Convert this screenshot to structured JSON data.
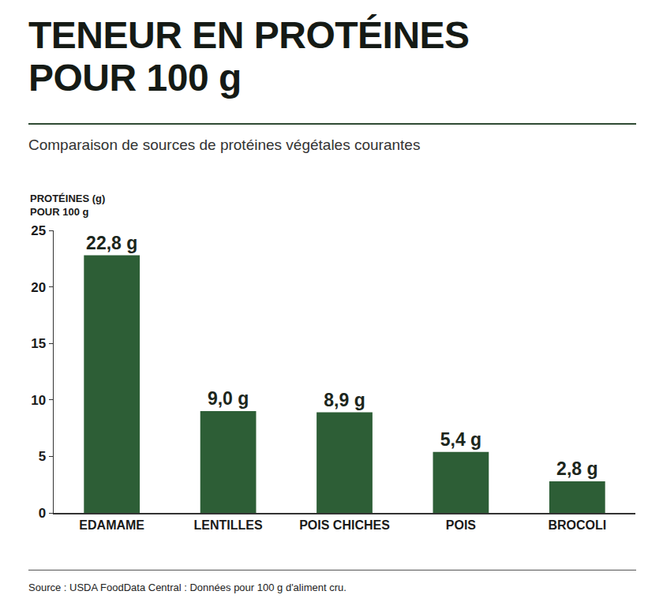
{
  "chart_data": {
    "type": "bar",
    "title": "TENEUR EN PROTÉINES\nPOUR 100 g",
    "subtitle": "Comparaison de sources de protéines végétales courantes",
    "y_label": "PROTÉINES (g)\nPOUR 100 g",
    "categories": [
      "EDAMAME",
      "LENTILLES",
      "POIS CHICHES",
      "POIS",
      "BROCOLI"
    ],
    "values": [
      22.8,
      9.0,
      8.9,
      5.4,
      2.8
    ],
    "value_labels": [
      "22,8 g",
      "9,0 g",
      "8,9 g",
      "5,4 g",
      "2,8 g"
    ],
    "color": "#2d5e36",
    "ylim": [
      0,
      25
    ],
    "yticks": [
      0,
      5,
      10,
      15,
      20,
      25
    ],
    "grid": false,
    "data_labels": true,
    "source": "Source : USDA FoodData Central : Données pour 100 g d'aliment cru."
  }
}
